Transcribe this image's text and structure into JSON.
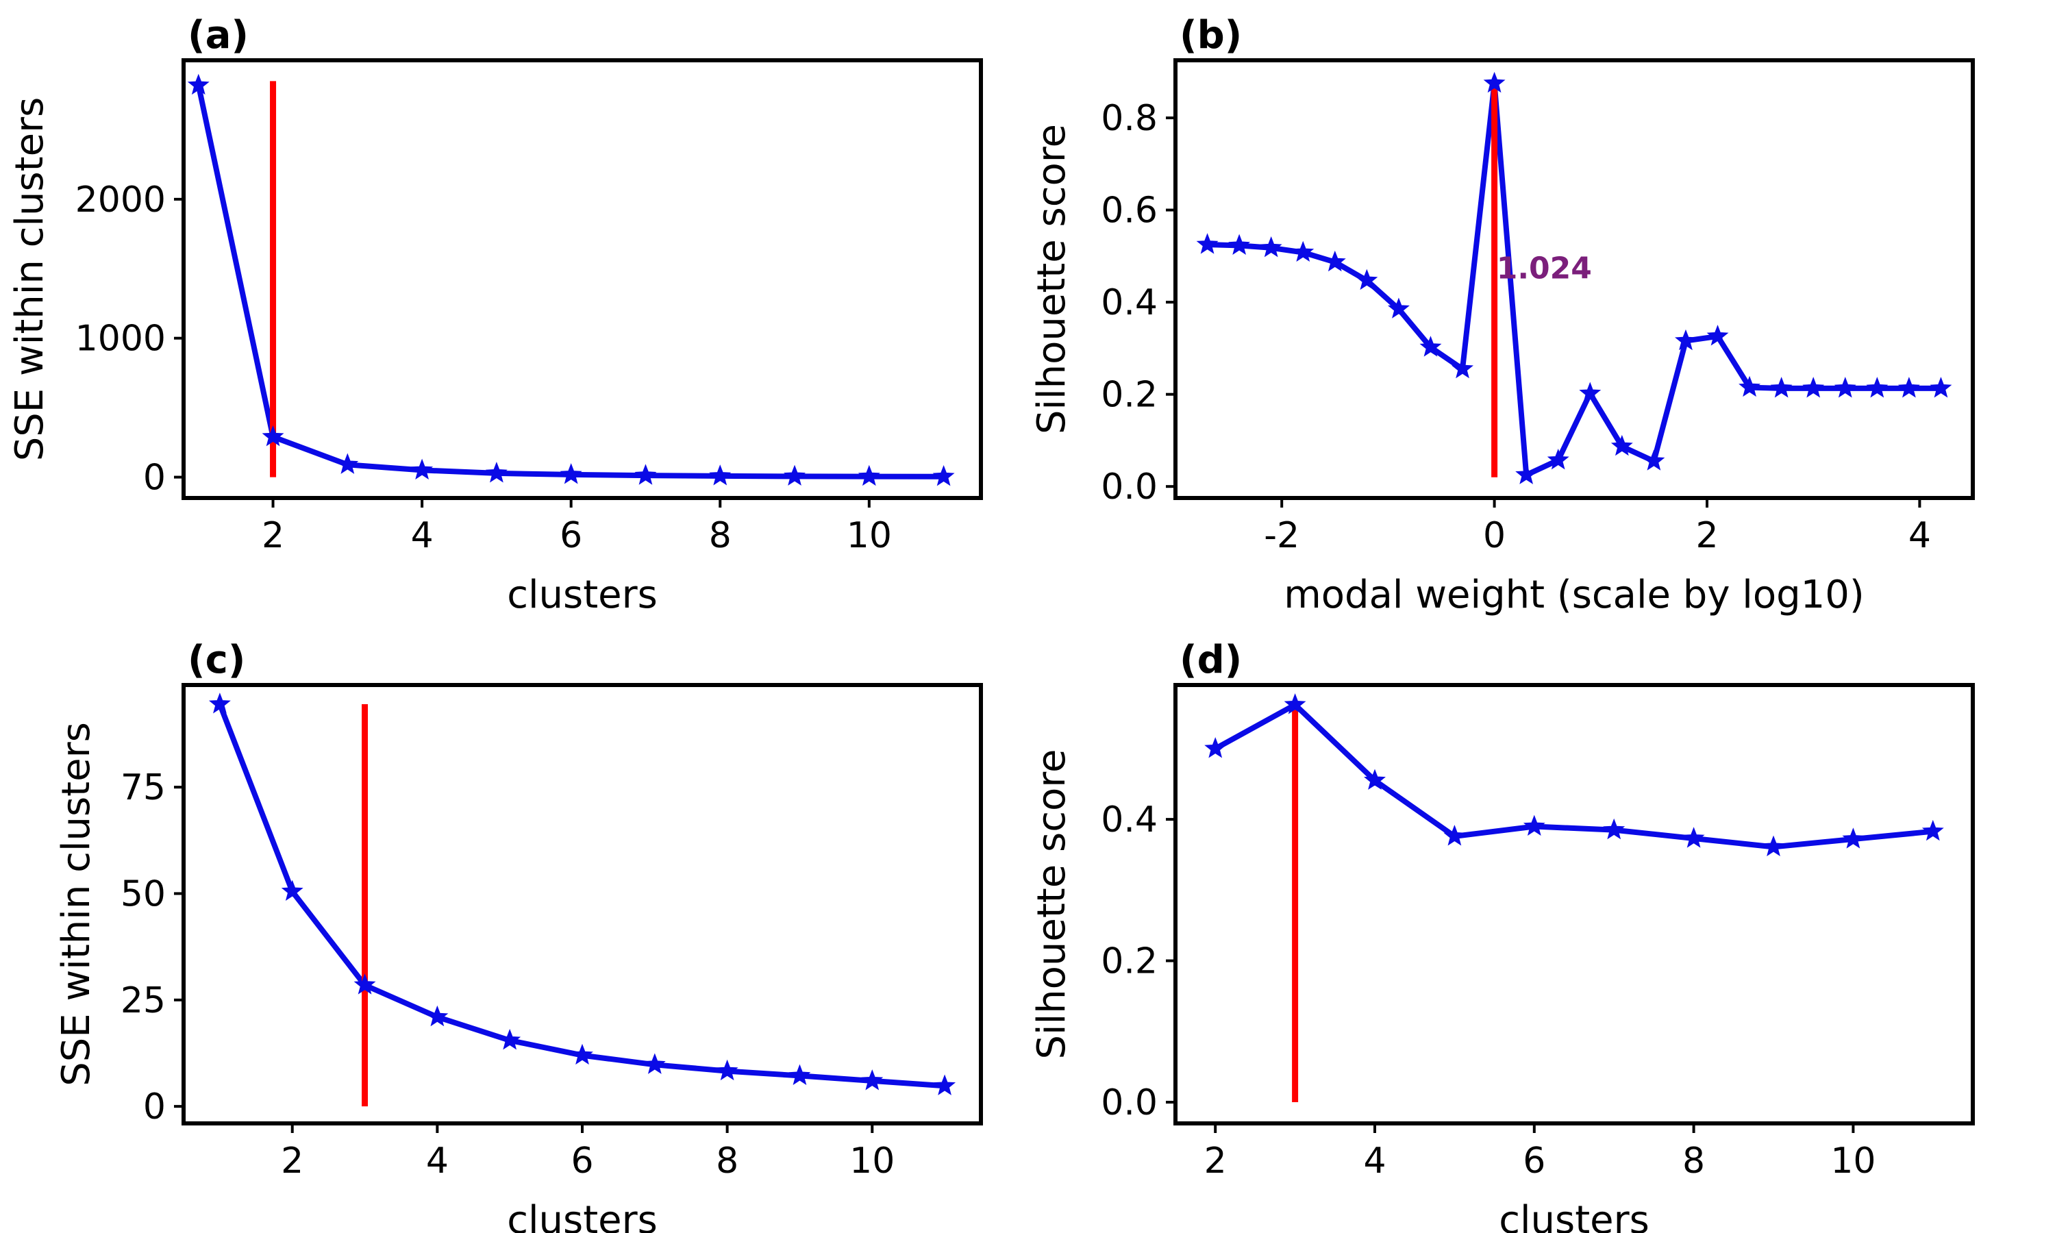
{
  "colors": {
    "line": "#0a0ae6",
    "marker_line": "#ff0000",
    "annotation": "#7b1f7b",
    "frame": "#000000"
  },
  "chart_data": [
    {
      "id": "a",
      "type": "line",
      "panel_label": "(a)",
      "xlabel": "clusters",
      "ylabel": "SSE within clusters",
      "xlim": [
        0.8,
        11.5
      ],
      "ylim": [
        -150,
        3000
      ],
      "xticks": [
        2,
        4,
        6,
        8,
        10
      ],
      "yticks": [
        0,
        1000,
        2000
      ],
      "x": [
        1,
        2,
        3,
        4,
        5,
        6,
        7,
        8,
        9,
        10,
        11
      ],
      "y": [
        2820,
        290,
        90,
        50,
        28,
        18,
        12,
        8,
        6,
        5,
        4
      ],
      "vline": {
        "x": 2,
        "y0": 0,
        "y1": 2850
      }
    },
    {
      "id": "b",
      "type": "line",
      "panel_label": "(b)",
      "xlabel": "modal weight (scale by log10)",
      "ylabel": "Silhouette score",
      "xlim": [
        -3.0,
        4.5
      ],
      "ylim": [
        -0.025,
        0.925
      ],
      "xticks": [
        -2,
        0,
        2,
        4
      ],
      "ytick_labels": [
        "0.0",
        "0.2",
        "0.4",
        "0.6",
        "0.8"
      ],
      "yticks": [
        0.0,
        0.2,
        0.4,
        0.6,
        0.8
      ],
      "x": [
        -2.7,
        -2.4,
        -2.1,
        -1.8,
        -1.5,
        -1.2,
        -0.9,
        -0.6,
        -0.3,
        0.0,
        0.3,
        0.6,
        0.9,
        1.2,
        1.5,
        1.8,
        2.1,
        2.4,
        2.7,
        3.0,
        3.3,
        3.6,
        3.9,
        4.2
      ],
      "y": [
        0.525,
        0.523,
        0.518,
        0.508,
        0.487,
        0.447,
        0.385,
        0.302,
        0.255,
        0.875,
        0.025,
        0.057,
        0.202,
        0.087,
        0.055,
        0.316,
        0.326,
        0.215,
        0.213,
        0.213,
        0.213,
        0.213,
        0.213,
        0.213
      ],
      "vline": {
        "x": 0.0,
        "y0": 0.02,
        "y1": 0.875
      },
      "annotation": {
        "text": "1.024",
        "x": 0.02,
        "y": 0.475
      }
    },
    {
      "id": "c",
      "type": "line",
      "panel_label": "(c)",
      "xlabel": "clusters",
      "ylabel": "SSE within clusters",
      "xlim": [
        0.5,
        11.5
      ],
      "ylim": [
        -4,
        99
      ],
      "xticks": [
        2,
        4,
        6,
        8,
        10
      ],
      "yticks": [
        0,
        25,
        50,
        75
      ],
      "x": [
        1,
        2,
        3,
        4,
        5,
        6,
        7,
        8,
        9,
        10,
        11
      ],
      "y": [
        94.5,
        50.5,
        28.5,
        21,
        15.5,
        12,
        9.8,
        8.3,
        7.2,
        6,
        4.8
      ],
      "vline": {
        "x": 3,
        "y0": 0,
        "y1": 94.5
      }
    },
    {
      "id": "d",
      "type": "line",
      "panel_label": "(d)",
      "xlabel": "clusters",
      "ylabel": "Silhouette score",
      "xlim": [
        1.5,
        11.5
      ],
      "ylim": [
        -0.03,
        0.59
      ],
      "xticks": [
        2,
        4,
        6,
        8,
        10
      ],
      "ytick_labels": [
        "0.0",
        "0.2",
        "0.4"
      ],
      "yticks": [
        0.0,
        0.2,
        0.4
      ],
      "x": [
        2,
        3,
        4,
        5,
        6,
        7,
        8,
        9,
        10,
        11
      ],
      "y": [
        0.5,
        0.562,
        0.455,
        0.376,
        0.39,
        0.385,
        0.373,
        0.361,
        0.372,
        0.383
      ],
      "vline": {
        "x": 3,
        "y0": 0,
        "y1": 0.562
      }
    }
  ]
}
